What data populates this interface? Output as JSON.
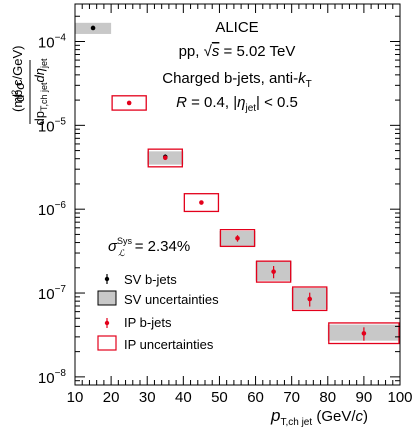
{
  "chart_data": {
    "type": "scatter",
    "xlabel": "p",
    "xlabel_sub": "T,ch jet",
    "xlabel_unit": " (GeV/",
    "xlabel_unit_c": "c",
    "xlabel_unit_close": ")",
    "ylabel_top_d2": "d",
    "ylabel_top_sigma": "σ",
    "ylabel_bottom_dp": "dp",
    "ylabel_bottom_sub": "T,ch jet",
    "ylabel_bottom_deta": "dη",
    "ylabel_bottom_eta_sub": "jet",
    "ylabel_unit": "(mb c/GeV)",
    "xlim": [
      10,
      100
    ],
    "ylim": [
      8e-09,
      0.00028
    ],
    "y_scale": "log",
    "x_ticks": [
      10,
      20,
      30,
      40,
      50,
      60,
      70,
      80,
      90,
      100
    ],
    "x_tick_labels": [
      "10",
      "20",
      "30",
      "40",
      "50",
      "60",
      "70",
      "80",
      "90",
      "100"
    ],
    "y_tick_labels": [
      {
        "base": "10",
        "exp": "−8"
      },
      {
        "base": "10",
        "exp": "−7"
      },
      {
        "base": "10",
        "exp": "−6"
      },
      {
        "base": "10",
        "exp": "−5"
      },
      {
        "base": "10",
        "exp": "−4"
      }
    ],
    "annotations": {
      "experiment": "ALICE",
      "system_prefix": "pp, √",
      "system_s": "s",
      "system_suffix": " = 5.02 TeV",
      "jets_prefix": "Charged b-jets, anti-",
      "jets_k": "k",
      "jets_k_sub": "T",
      "radius_R": "R",
      "radius_mid": " = 0.4, |",
      "radius_eta": "η",
      "radius_eta_sub": "jet",
      "radius_end": "| < 0.5",
      "sys_sigma": "σ",
      "sys_sup": "Sys",
      "sys_sub": "ℒ",
      "sys_value": " = 2.34%"
    },
    "legend": {
      "placement": "left",
      "entries": [
        "SV b-jets",
        "SV uncertainties",
        "IP b-jets",
        "IP uncertainties"
      ]
    },
    "series": [
      {
        "name": "SV b-jets",
        "color": "#000000",
        "uncertainty_color": "#c8c8c8",
        "points": [
          {
            "x": 15,
            "y": 0.000145,
            "xlo": 10,
            "xhi": 20,
            "sys_lo": 0.000123,
            "sys_hi": 0.000167,
            "stat": 3.5e-06
          },
          {
            "x": 35,
            "y": 4.2e-06,
            "xlo": 30,
            "xhi": 40,
            "sys_lo": 3.4e-06,
            "sys_hi": 4.9e-06,
            "stat": 3e-07
          }
        ]
      },
      {
        "name": "IP b-jets",
        "color": "#e3001b",
        "uncertainty_color": "#e3001b",
        "points": [
          {
            "x": 25,
            "y": 1.85e-05,
            "xlo": 20,
            "xhi": 30,
            "sys_lo": 1.52e-05,
            "sys_hi": 2.25e-05,
            "stat": 5e-07
          },
          {
            "x": 35,
            "y": 4.1e-06,
            "xlo": 30,
            "xhi": 40,
            "sys_lo": 3.2e-06,
            "sys_hi": 5.2e-06,
            "stat": 1.5e-07
          },
          {
            "x": 45,
            "y": 1.2e-06,
            "xlo": 40,
            "xhi": 50,
            "sys_lo": 9.4e-07,
            "sys_hi": 1.53e-06,
            "stat": 6e-08
          },
          {
            "x": 55,
            "y": 4.5e-07,
            "xlo": 50,
            "xhi": 60,
            "sys_lo": 3.6e-07,
            "sys_hi": 5.7e-07,
            "stat": 4e-08
          },
          {
            "x": 65,
            "y": 1.8e-07,
            "xlo": 60,
            "xhi": 70,
            "sys_lo": 1.35e-07,
            "sys_hi": 2.4e-07,
            "stat": 3e-08
          },
          {
            "x": 75,
            "y": 8.5e-08,
            "xlo": 70,
            "xhi": 80,
            "sys_lo": 6.2e-08,
            "sys_hi": 1.18e-07,
            "stat": 1.6e-08
          },
          {
            "x": 90,
            "y": 3.3e-08,
            "xlo": 80,
            "xhi": 100,
            "sys_lo": 2.5e-08,
            "sys_hi": 4.4e-08,
            "stat": 6e-09
          }
        ]
      }
    ],
    "sv_uncertainty_boxes_extra": [
      {
        "xlo": 50,
        "xhi": 60,
        "lo": 3.6e-07,
        "hi": 5.5e-07
      },
      {
        "xlo": 60,
        "xhi": 70,
        "lo": 1.4e-07,
        "hi": 2.4e-07
      },
      {
        "xlo": 70,
        "xhi": 80,
        "lo": 6.4e-08,
        "hi": 1.15e-07
      },
      {
        "xlo": 80,
        "xhi": 100,
        "lo": 2.7e-08,
        "hi": 4.2e-08
      }
    ]
  }
}
